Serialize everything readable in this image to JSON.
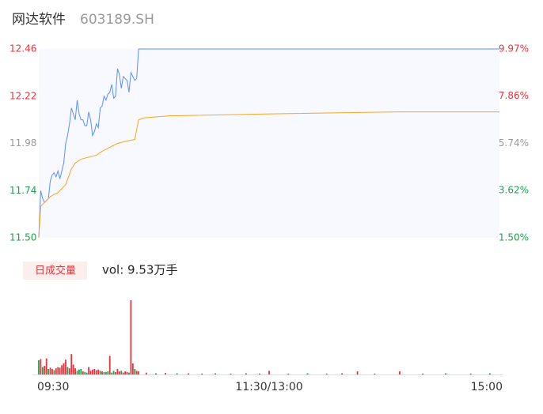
{
  "chart_data": [
    {
      "type": "line",
      "title": "网达软件",
      "subtitle": "603189.SH",
      "xlim": [
        0,
        240
      ],
      "ylim": [
        11.5,
        12.46
      ],
      "yticks": [
        12.46,
        12.22,
        11.98,
        11.74,
        {
          "value": 11.5,
          "label": "11.50"
        }
      ],
      "ytick_colors": [
        "#e8313b",
        "#e8313b",
        "#999999",
        "#1aa34a",
        "#1aa34a"
      ],
      "y2lim": [
        1.5,
        9.97
      ],
      "y2ticks": [
        {
          "value": 9.97,
          "label": "9.97%"
        },
        {
          "value": 7.86,
          "label": "7.86%"
        },
        {
          "value": 5.74,
          "label": "5.74%"
        },
        {
          "value": 3.62,
          "label": "3.62%"
        },
        {
          "value": 1.5,
          "label": "1.50%"
        }
      ],
      "series": [
        {
          "color": "#5b8ff9",
          "x": [
            0,
            1,
            2,
            3,
            5,
            6,
            7,
            8,
            9,
            10,
            11,
            12,
            13,
            14,
            15,
            16,
            17,
            18,
            19,
            20,
            21,
            22,
            23,
            24,
            25,
            26,
            27,
            28,
            29,
            30,
            31,
            32,
            33,
            34,
            35,
            36,
            37,
            38,
            39,
            40,
            41,
            42,
            43,
            44,
            45,
            46,
            47,
            48,
            49,
            50,
            51,
            52,
            240
          ],
          "values": [
            11.5,
            11.74,
            11.7,
            11.68,
            11.7,
            11.79,
            11.82,
            11.83,
            11.81,
            11.84,
            11.8,
            11.84,
            11.88,
            11.98,
            12.02,
            12.08,
            12.16,
            12.13,
            12.1,
            12.2,
            12.13,
            12.1,
            12.1,
            12.07,
            12.07,
            12.14,
            12.1,
            12.02,
            12.04,
            12.08,
            12.06,
            12.16,
            12.17,
            12.22,
            12.2,
            12.23,
            12.24,
            12.28,
            12.21,
            12.22,
            12.36,
            12.33,
            12.26,
            12.32,
            12.31,
            12.3,
            12.24,
            12.34,
            12.32,
            12.3,
            12.31,
            12.46,
            12.46
          ]
        },
        {
          "color": "#f5a623",
          "x": [
            0,
            1,
            3,
            6,
            10,
            14,
            17,
            19,
            22,
            26,
            30,
            33,
            37,
            41,
            45,
            50,
            52,
            55,
            68,
            121,
            187,
            240
          ],
          "values": [
            11.5,
            11.66,
            11.68,
            11.71,
            11.73,
            11.77,
            11.85,
            11.88,
            11.9,
            11.91,
            11.92,
            11.94,
            11.96,
            11.98,
            11.99,
            12.0,
            12.1,
            12.11,
            12.12,
            12.13,
            12.14,
            12.14
          ]
        }
      ]
    },
    {
      "type": "bar",
      "title": "日成交量",
      "annotation": "vol: 9.53万手",
      "xlim": [
        0,
        240
      ],
      "ylim": [
        0,
        12000
      ],
      "xticks": [
        {
          "value": 0,
          "label": "09:30"
        },
        {
          "value": 120,
          "label": "11:30/13:00"
        },
        {
          "value": 240,
          "label": "15:00"
        }
      ],
      "x": [
        0,
        1,
        2,
        3,
        4,
        5,
        6,
        7,
        8,
        9,
        10,
        11,
        12,
        13,
        14,
        15,
        16,
        17,
        18,
        19,
        20,
        21,
        22,
        23,
        24,
        25,
        26,
        27,
        28,
        29,
        30,
        31,
        32,
        33,
        34,
        35,
        36,
        37,
        38,
        39,
        40,
        41,
        42,
        43,
        44,
        45,
        46,
        47,
        48,
        49,
        50,
        51,
        52,
        56,
        61,
        66,
        72,
        78,
        85,
        92,
        100,
        108,
        115,
        120,
        130,
        140,
        150,
        158,
        166,
        175,
        188,
        200,
        212,
        225,
        235
      ],
      "values": [
        2300,
        2500,
        1200,
        1400,
        2600,
        900,
        1100,
        900,
        700,
        1000,
        1200,
        1100,
        1500,
        1800,
        2400,
        1200,
        1000,
        3300,
        1600,
        1000,
        600,
        800,
        900,
        500,
        400,
        300,
        1200,
        600,
        800,
        900,
        700,
        800,
        600,
        500,
        400,
        400,
        500,
        3000,
        300,
        600,
        400,
        900,
        500,
        600,
        300,
        500,
        400,
        300,
        12000,
        1800,
        900,
        600,
        500,
        300,
        200,
        250,
        200,
        200,
        150,
        200,
        150,
        200,
        150,
        600,
        150,
        200,
        150,
        200,
        500,
        150,
        500,
        150,
        200,
        150,
        200
      ],
      "colors": [
        "#1aa34a",
        "#e8313b",
        "#1aa34a",
        "#e8313b",
        "#e8313b",
        "#1aa34a",
        "#e8313b",
        "#e8313b",
        "#1aa34a",
        "#e8313b",
        "#e8313b",
        "#e8313b",
        "#e8313b",
        "#e8313b",
        "#e8313b",
        "#1aa34a",
        "#e8313b",
        "#e8313b",
        "#e8313b",
        "#e8313b",
        "#1aa34a",
        "#1aa34a",
        "#1aa34a",
        "#e8313b",
        "#1aa34a",
        "#1aa34a",
        "#e8313b",
        "#e8313b",
        "#e8313b",
        "#e8313b",
        "#e8313b",
        "#e8313b",
        "#1aa34a",
        "#e8313b",
        "#1aa34a",
        "#1aa34a",
        "#1aa34a",
        "#e8313b",
        "#1aa34a",
        "#1aa34a",
        "#e8313b",
        "#e8313b",
        "#e8313b",
        "#1aa34a",
        "#e8313b",
        "#e8313b",
        "#e8313b",
        "#1aa34a",
        "#e8313b",
        "#e8313b",
        "#1aa34a",
        "#e8313b",
        "#e8313b",
        "#e8313b",
        "#1aa34a",
        "#e8313b",
        "#1aa34a",
        "#e8313b",
        "#e8313b",
        "#1aa34a",
        "#e8313b",
        "#e8313b",
        "#1aa34a",
        "#e8313b",
        "#e8313b",
        "#1aa34a",
        "#e8313b",
        "#e8313b",
        "#e8313b",
        "#1aa34a",
        "#e8313b",
        "#e8313b",
        "#1aa34a",
        "#e8313b",
        "#1aa34a"
      ]
    }
  ]
}
